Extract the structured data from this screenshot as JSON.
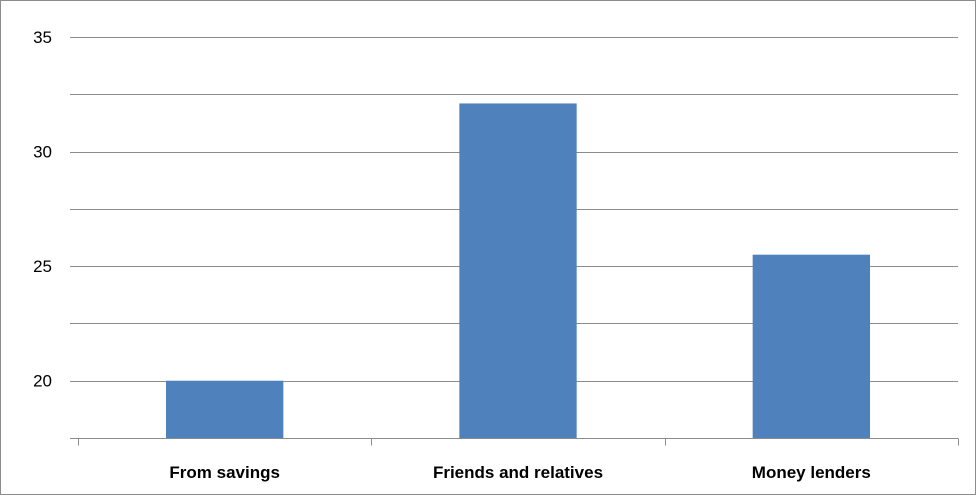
{
  "chart_data": {
    "type": "bar",
    "categories": [
      "From savings",
      "Friends and relatives",
      "Money lenders"
    ],
    "values": [
      20,
      32.1,
      25.5
    ],
    "ylim": [
      17.5,
      35
    ],
    "yticks": [
      20,
      25,
      30,
      35
    ],
    "grid": true,
    "legend": "none",
    "colors": {
      "bar": "#4f81bd",
      "grid": "#8c8c8c",
      "axis": "#8c8c8c"
    },
    "title": "",
    "xlabel": "",
    "ylabel": ""
  }
}
